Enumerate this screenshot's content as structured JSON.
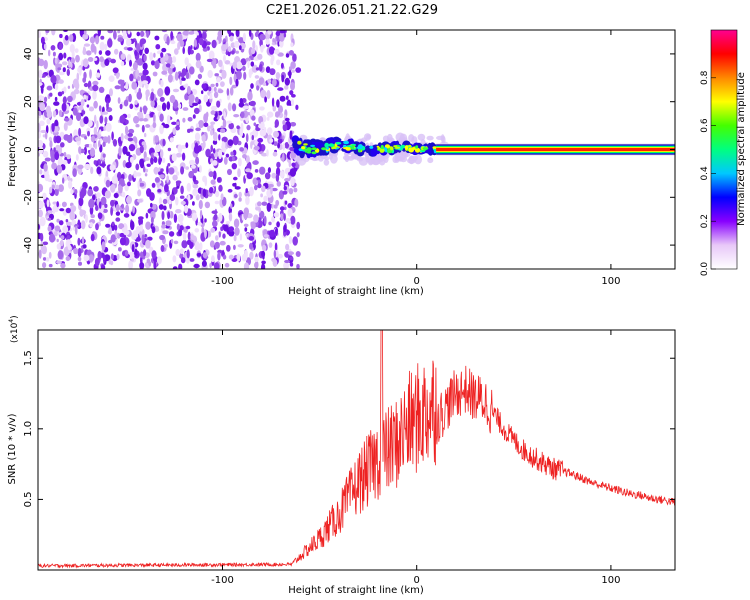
{
  "title": "C2E1.2026.051.21.22.G29",
  "chart_data": [
    {
      "type": "heatmap",
      "xlabel": "Height of straight line (km)",
      "ylabel": "Frequency (Hz)",
      "xlim": [
        -195,
        133
      ],
      "ylim": [
        -50,
        50
      ],
      "xticks": [
        -100,
        0,
        100
      ],
      "yticks": [
        -40,
        -20,
        0,
        20,
        40
      ],
      "colorbar": {
        "label": "Normalized spectral amplitude",
        "range": [
          0,
          1
        ],
        "ticks": [
          "0.0",
          "0.2",
          "0.4",
          "0.6",
          "0.8"
        ],
        "tick_values": [
          0,
          0.2,
          0.4,
          0.6,
          0.8
        ],
        "colors": [
          "#ffffff",
          "#e8c8f8",
          "#8800ff",
          "#0000ff",
          "#00c8ff",
          "#00ff80",
          "#44ff00",
          "#ffff00",
          "#ff8800",
          "#ff0000",
          "#ff0090"
        ]
      },
      "features": {
        "noise_region_x": [
          -195,
          -63
        ],
        "transition_region_x": [
          -63,
          10
        ],
        "carrier_region_x": [
          10,
          133
        ],
        "carrier_frequency": 0
      }
    },
    {
      "type": "line",
      "xlabel": "Height of straight line (km)",
      "ylabel": "SNR (10 * v/v)",
      "y_scale_label": "(x10",
      "y_scale_exponent": "4",
      "xlim": [
        -195,
        133
      ],
      "ylim": [
        0,
        1.7
      ],
      "xticks": [
        -100,
        0,
        100
      ],
      "yticks": [
        0.5,
        1.0,
        1.5
      ],
      "ytick_labels": [
        "0.5",
        "1.0",
        "1.5"
      ],
      "color": "#ee2222",
      "series": [
        {
          "name": "SNR",
          "envelope_x": [
            -195,
            -64,
            -50,
            -40,
            -30,
            -20,
            -10,
            -5,
            0,
            5,
            10,
            15,
            20,
            25,
            30,
            35,
            40,
            45,
            50,
            55,
            60,
            65,
            70,
            75,
            80,
            85,
            90,
            95,
            100,
            105,
            110,
            115,
            120,
            125,
            133
          ],
          "envelope_y": [
            0.03,
            0.04,
            0.2,
            0.35,
            0.55,
            0.7,
            0.8,
            0.9,
            0.95,
            1.0,
            1.05,
            1.15,
            1.25,
            1.28,
            1.22,
            1.2,
            1.1,
            1.0,
            0.92,
            0.85,
            0.8,
            0.76,
            0.72,
            0.7,
            0.68,
            0.65,
            0.62,
            0.6,
            0.58,
            0.56,
            0.54,
            0.53,
            0.51,
            0.5,
            0.48
          ],
          "peak_x": -18,
          "peak_y": 1.72
        }
      ]
    }
  ]
}
